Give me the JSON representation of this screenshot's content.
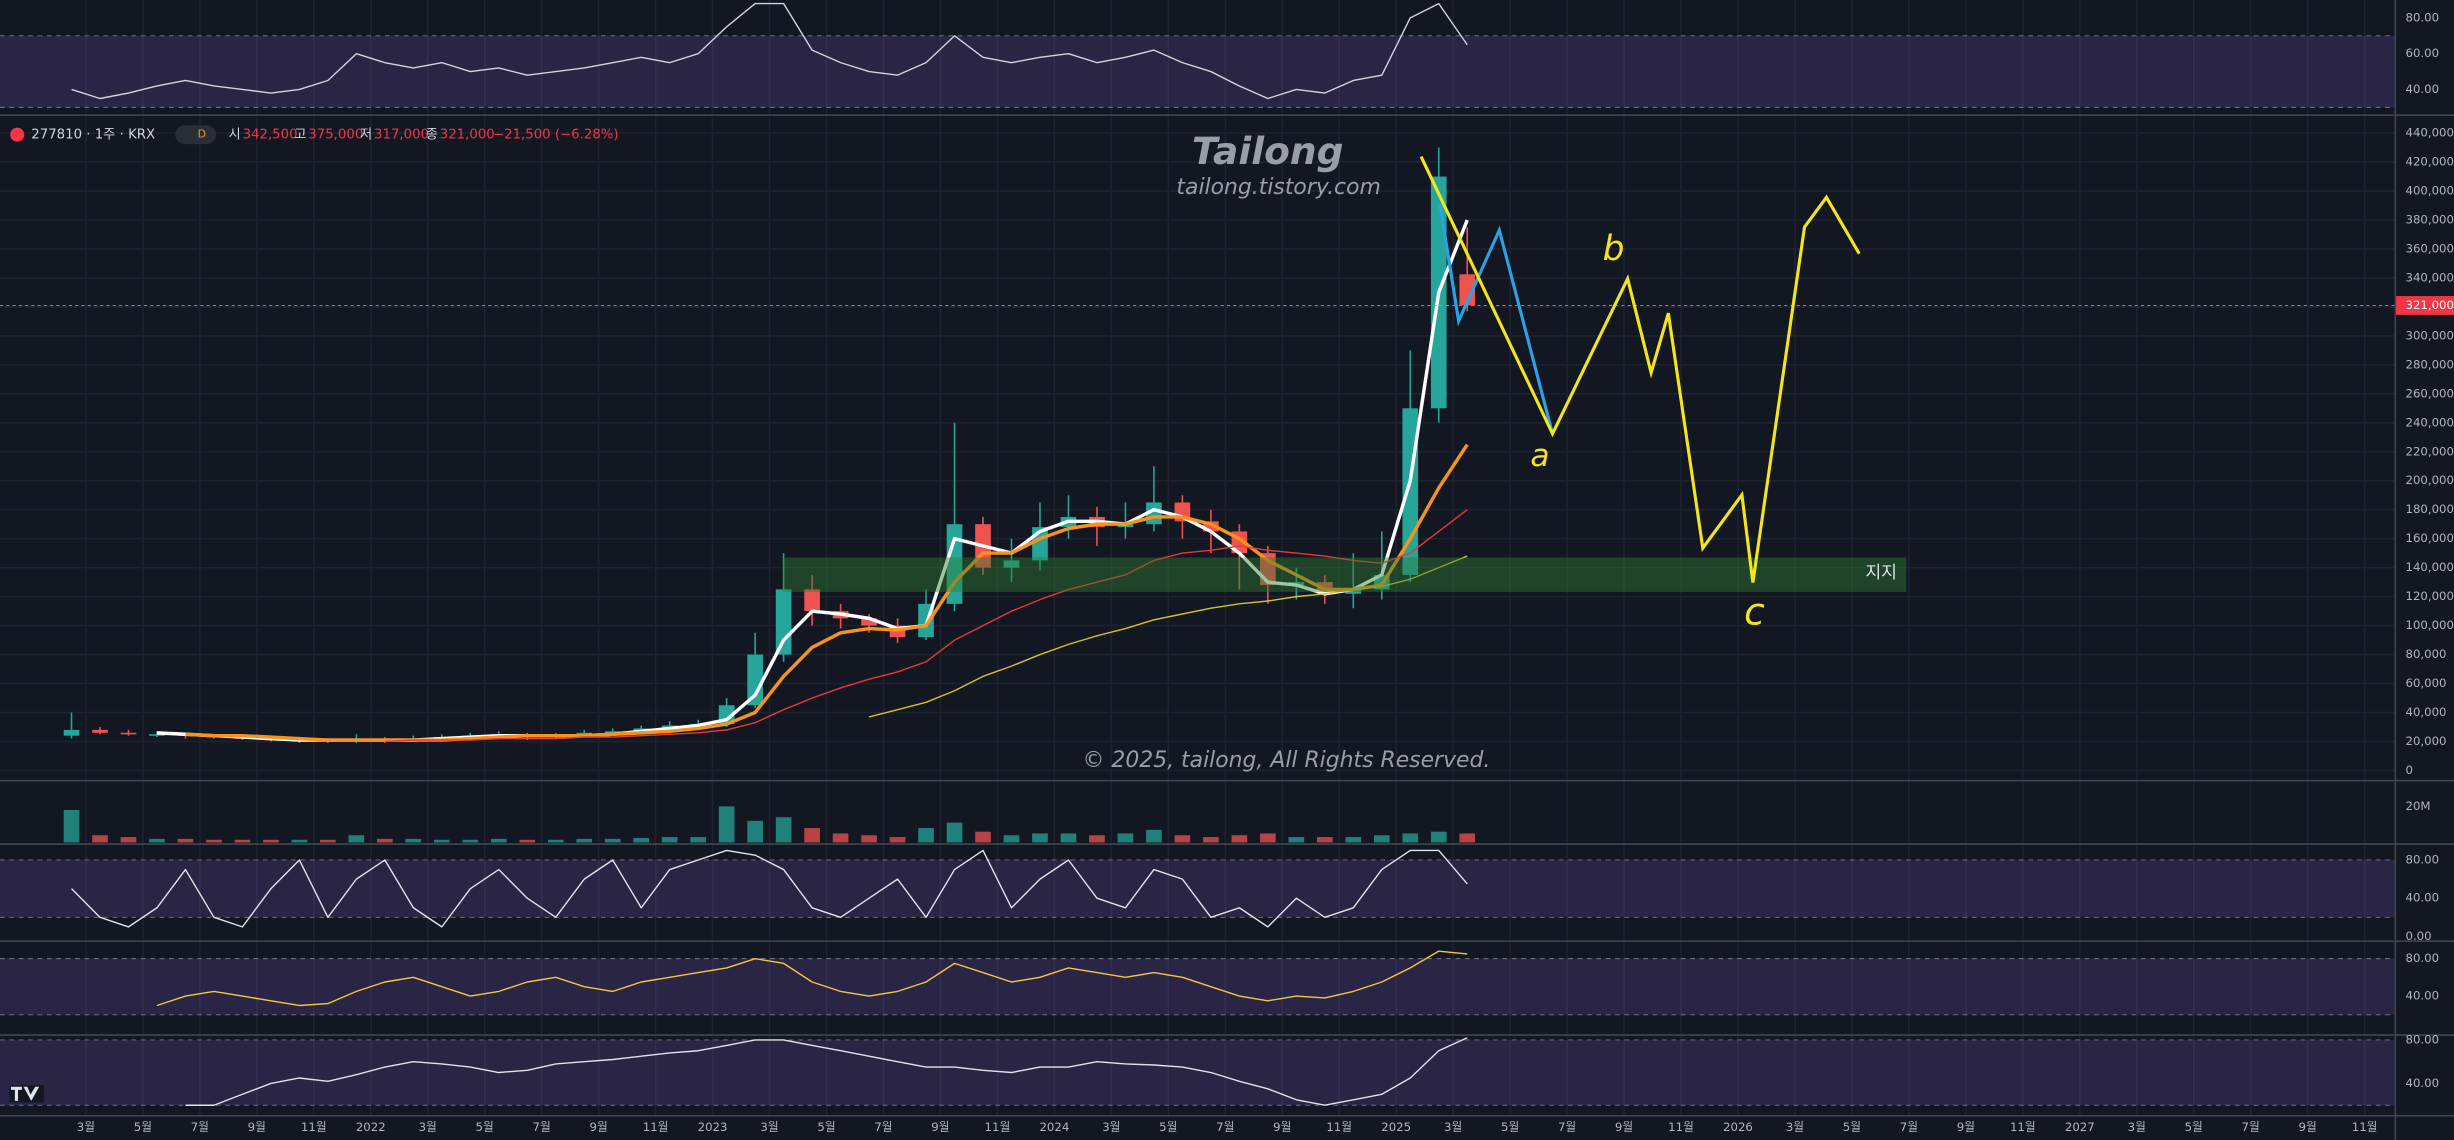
{
  "header": {
    "symbol": "277810 · 1주 · KRX",
    "badge": "D",
    "open_label": "시",
    "open": "342,500",
    "high_label": "고",
    "high": "375,000",
    "low_label": "저",
    "low": "317,000",
    "close_label": "종",
    "close": "321,000",
    "change": "−21,500 (−6.28%)"
  },
  "watermark": {
    "title": "Tailong",
    "url": "tailong.tistory.com",
    "copyright": "© 2025, tailong, All Rights Reserved."
  },
  "annotations": {
    "support": "지지",
    "a": "a",
    "b": "b",
    "c": "c"
  },
  "time_labels": [
    "3월",
    "5월",
    "7월",
    "9월",
    "11월",
    "2022",
    "3월",
    "5월",
    "7월",
    "9월",
    "11월",
    "2023",
    "3월",
    "5월",
    "7월",
    "9월",
    "11월",
    "2024",
    "3월",
    "5월",
    "7월",
    "9월",
    "11월",
    "2025",
    "3월",
    "5월",
    "7월",
    "9월",
    "11월",
    "2026",
    "3월",
    "5월",
    "7월",
    "9월",
    "11월",
    "2027",
    "3월",
    "5월",
    "7월",
    "9월",
    "11월"
  ],
  "chart_data": [
    {
      "type": "candlestick",
      "up_color": "#26a69a",
      "down_color": "#ef5350",
      "open": [
        24000,
        28000,
        26000,
        25000,
        25000,
        24000,
        23000,
        22000,
        21000,
        21000,
        20000,
        22000,
        21000,
        22000,
        23000,
        24000,
        25000,
        23000,
        24000,
        26000,
        27000,
        29000,
        31000,
        32000,
        45000,
        80000,
        125000,
        110000,
        105000,
        100000,
        92000,
        115000,
        170000,
        140000,
        145000,
        168000,
        175000,
        168000,
        170000,
        185000,
        172000,
        165000,
        150000,
        128000,
        130000,
        122000,
        125000,
        135000,
        250000,
        342500
      ],
      "high": [
        40000,
        30000,
        28000,
        27000,
        26000,
        25000,
        24000,
        23000,
        23000,
        22000,
        25000,
        23000,
        24000,
        25000,
        26000,
        27000,
        26000,
        26000,
        28000,
        29000,
        31000,
        34000,
        35000,
        50000,
        95000,
        150000,
        135000,
        115000,
        108000,
        105000,
        125000,
        240000,
        175000,
        160000,
        185000,
        190000,
        182000,
        185000,
        210000,
        190000,
        180000,
        170000,
        155000,
        140000,
        135000,
        150000,
        165000,
        290000,
        430000,
        375000
      ],
      "low": [
        22000,
        25000,
        24000,
        23000,
        22000,
        22000,
        21000,
        20000,
        19000,
        19000,
        19000,
        19000,
        20000,
        21000,
        22000,
        22000,
        21000,
        22000,
        23000,
        25000,
        26000,
        28000,
        29000,
        30000,
        43000,
        75000,
        100000,
        98000,
        95000,
        88000,
        90000,
        110000,
        135000,
        130000,
        138000,
        160000,
        155000,
        160000,
        165000,
        160000,
        150000,
        125000,
        115000,
        118000,
        115000,
        112000,
        118000,
        130000,
        240000,
        317000
      ],
      "close": [
        28000,
        26000,
        25000,
        25000,
        24000,
        23000,
        22000,
        21000,
        21000,
        20000,
        22000,
        21000,
        22000,
        23000,
        24000,
        25000,
        23000,
        24000,
        26000,
        27000,
        29000,
        31000,
        32000,
        45000,
        80000,
        125000,
        110000,
        105000,
        100000,
        92000,
        115000,
        170000,
        140000,
        145000,
        168000,
        175000,
        168000,
        170000,
        185000,
        172000,
        165000,
        150000,
        128000,
        130000,
        122000,
        125000,
        135000,
        250000,
        410000,
        321000
      ],
      "overlays": [
        {
          "color": "#ffffff",
          "width": 2.2,
          "values": [
            null,
            null,
            null,
            26000,
            25000,
            24000,
            23000,
            22000,
            21000,
            21000,
            21000,
            21000,
            21000,
            22000,
            23000,
            24000,
            24000,
            24000,
            24000,
            25000,
            27000,
            29000,
            31000,
            35000,
            52000,
            90000,
            110000,
            108000,
            105000,
            98000,
            100000,
            160000,
            155000,
            150000,
            165000,
            172000,
            172000,
            170000,
            180000,
            175000,
            165000,
            150000,
            130000,
            128000,
            122000,
            125000,
            135000,
            200000,
            330000,
            380000
          ]
        },
        {
          "color": "#f7931a",
          "width": 2.2,
          "values": [
            null,
            null,
            null,
            null,
            25000,
            24000,
            24000,
            23000,
            22000,
            21000,
            21000,
            21000,
            21000,
            21000,
            22000,
            23000,
            24000,
            24000,
            24000,
            25000,
            26000,
            27000,
            29000,
            32000,
            40000,
            65000,
            85000,
            95000,
            98000,
            97000,
            100000,
            130000,
            150000,
            150000,
            160000,
            167000,
            170000,
            170000,
            175000,
            175000,
            170000,
            160000,
            145000,
            135000,
            125000,
            125000,
            128000,
            160000,
            195000,
            225000
          ]
        },
        {
          "color": "#e53935",
          "width": 0.9,
          "values": [
            null,
            null,
            null,
            null,
            null,
            null,
            null,
            null,
            null,
            null,
            null,
            20000,
            21000,
            21000,
            21000,
            22000,
            22000,
            22000,
            23000,
            23000,
            24000,
            25000,
            26000,
            28000,
            33000,
            42000,
            50000,
            57000,
            63000,
            68000,
            75000,
            90000,
            100000,
            110000,
            118000,
            125000,
            130000,
            135000,
            145000,
            150000,
            152000,
            155000,
            152000,
            150000,
            148000,
            145000,
            143000,
            150000,
            165000,
            180000
          ]
        },
        {
          "color": "#d4c12a",
          "width": 0.9,
          "values": [
            null,
            null,
            null,
            null,
            null,
            null,
            null,
            null,
            null,
            null,
            null,
            null,
            null,
            null,
            null,
            null,
            null,
            null,
            null,
            null,
            null,
            null,
            null,
            null,
            null,
            null,
            null,
            null,
            37000,
            42000,
            47000,
            55000,
            65000,
            72000,
            80000,
            87000,
            93000,
            98000,
            104000,
            108000,
            112000,
            115000,
            117000,
            120000,
            122000,
            125000,
            127000,
            132000,
            140000,
            148000
          ]
        }
      ],
      "last_price": {
        "value": 321000,
        "label": "321,000"
      },
      "ylim": [
        -5400,
        450800
      ],
      "yticks": [
        0,
        {
          "value": 20000,
          "label": "20,000"
        },
        {
          "value": 40000,
          "label": "40,000"
        },
        {
          "value": 60000,
          "label": "60,000"
        },
        {
          "value": 80000,
          "label": "80,000"
        },
        {
          "value": 100000,
          "label": "100,000"
        },
        {
          "value": 120000,
          "label": "120,000"
        },
        {
          "value": 140000,
          "label": "140,000"
        },
        {
          "value": 160000,
          "label": "160,000"
        },
        {
          "value": 180000,
          "label": "180,000"
        },
        {
          "value": 200000,
          "label": "200,000"
        },
        {
          "value": 220000,
          "label": "220,000"
        },
        {
          "value": 240000,
          "label": "240,000"
        },
        {
          "value": 260000,
          "label": "260,000"
        },
        {
          "value": 280000,
          "label": "280,000"
        },
        {
          "value": 300000,
          "label": "300,000"
        },
        {
          "value": 320000,
          "label": "320,000"
        },
        {
          "value": 340000,
          "label": "340,000"
        },
        {
          "value": 360000,
          "label": "360,000"
        },
        {
          "value": 380000,
          "label": "380,000"
        },
        {
          "value": 400000,
          "label": "400,000"
        },
        {
          "value": 420000,
          "label": "420,000"
        },
        {
          "value": 440000,
          "label": "440,000"
        }
      ],
      "grid": true
    },
    {
      "type": "bar",
      "values": [
        18000000,
        4000000,
        3000000,
        2000000,
        2000000,
        1500000,
        1500000,
        1500000,
        1500000,
        1500000,
        4000000,
        2000000,
        2000000,
        1500000,
        1500000,
        2000000,
        1500000,
        1500000,
        2000000,
        2000000,
        2500000,
        3000000,
        3000000,
        20000000,
        12000000,
        14000000,
        8000000,
        5000000,
        4000000,
        3000000,
        8000000,
        11000000,
        6000000,
        4000000,
        5000000,
        5000000,
        4000000,
        5000000,
        7000000,
        4000000,
        3000000,
        4000000,
        5000000,
        3000000,
        3000000,
        3000000,
        4000000,
        5000000,
        6000000,
        5000000
      ],
      "ylim": [
        0,
        33000000
      ],
      "yticks": [
        {
          "value": 20000000,
          "label": "20M"
        }
      ]
    },
    {
      "type": "line",
      "color": "#d1d4dc",
      "band": [
        30,
        70
      ],
      "band_color": "#7e57c2",
      "values": [
        40,
        35,
        38,
        42,
        45,
        42,
        40,
        38,
        40,
        45,
        60,
        55,
        52,
        55,
        50,
        52,
        48,
        50,
        52,
        55,
        58,
        55,
        60,
        75,
        88,
        88,
        62,
        55,
        50,
        48,
        55,
        70,
        58,
        55,
        58,
        60,
        55,
        58,
        62,
        55,
        50,
        42,
        35,
        40,
        38,
        45,
        48,
        80,
        88,
        65
      ],
      "ylim": [
        27,
        90
      ],
      "yticks": [
        {
          "value": 80,
          "label": "80.00"
        },
        {
          "value": 60,
          "label": "60.00"
        },
        {
          "value": 40,
          "label": "40.00"
        }
      ]
    },
    {
      "type": "line",
      "color": "#e0e3eb",
      "band": [
        20,
        80
      ],
      "band_color": "#7e57c2",
      "values": [
        50,
        20,
        10,
        30,
        70,
        20,
        10,
        50,
        80,
        20,
        60,
        80,
        30,
        10,
        50,
        70,
        40,
        20,
        60,
        80,
        30,
        70,
        80,
        90,
        85,
        70,
        30,
        20,
        40,
        60,
        20,
        70,
        90,
        30,
        60,
        80,
        40,
        30,
        70,
        60,
        20,
        30,
        10,
        40,
        20,
        30,
        70,
        90,
        90,
        55
      ],
      "ylim": [
        -3.3,
        95
      ],
      "yticks": [
        {
          "value": 80,
          "label": "80.00"
        },
        {
          "value": 40,
          "label": "40.00"
        },
        {
          "value": 0,
          "label": "0.00"
        }
      ]
    },
    {
      "type": "line",
      "color": "#f5c542",
      "band": [
        20,
        80
      ],
      "band_color": "#7e57c2",
      "values": [
        null,
        null,
        null,
        30,
        40,
        45,
        40,
        35,
        30,
        32,
        45,
        55,
        60,
        50,
        40,
        45,
        55,
        60,
        50,
        45,
        55,
        60,
        65,
        70,
        80,
        75,
        55,
        45,
        40,
        45,
        55,
        75,
        65,
        55,
        60,
        70,
        65,
        60,
        65,
        60,
        50,
        40,
        35,
        40,
        38,
        45,
        55,
        70,
        88,
        85
      ],
      "ylim": [
        0,
        97
      ],
      "yticks": [
        {
          "value": 80,
          "label": "80.00"
        },
        {
          "value": 40,
          "label": "40.00"
        }
      ]
    },
    {
      "type": "line",
      "color": "#e0e3eb",
      "band": [
        20,
        80
      ],
      "band_color": "#7e57c2",
      "values": [
        null,
        null,
        null,
        null,
        20,
        20,
        30,
        40,
        45,
        42,
        48,
        55,
        60,
        58,
        55,
        50,
        52,
        58,
        60,
        62,
        65,
        68,
        70,
        75,
        80,
        80,
        75,
        70,
        65,
        60,
        55,
        55,
        52,
        50,
        55,
        55,
        60,
        58,
        57,
        55,
        50,
        42,
        35,
        25,
        20,
        25,
        30,
        45,
        70,
        82
      ],
      "ylim": [
        11,
        83
      ],
      "yticks": [
        {
          "value": 80,
          "label": "80.00"
        },
        {
          "value": 40,
          "label": "40.00"
        }
      ]
    }
  ]
}
